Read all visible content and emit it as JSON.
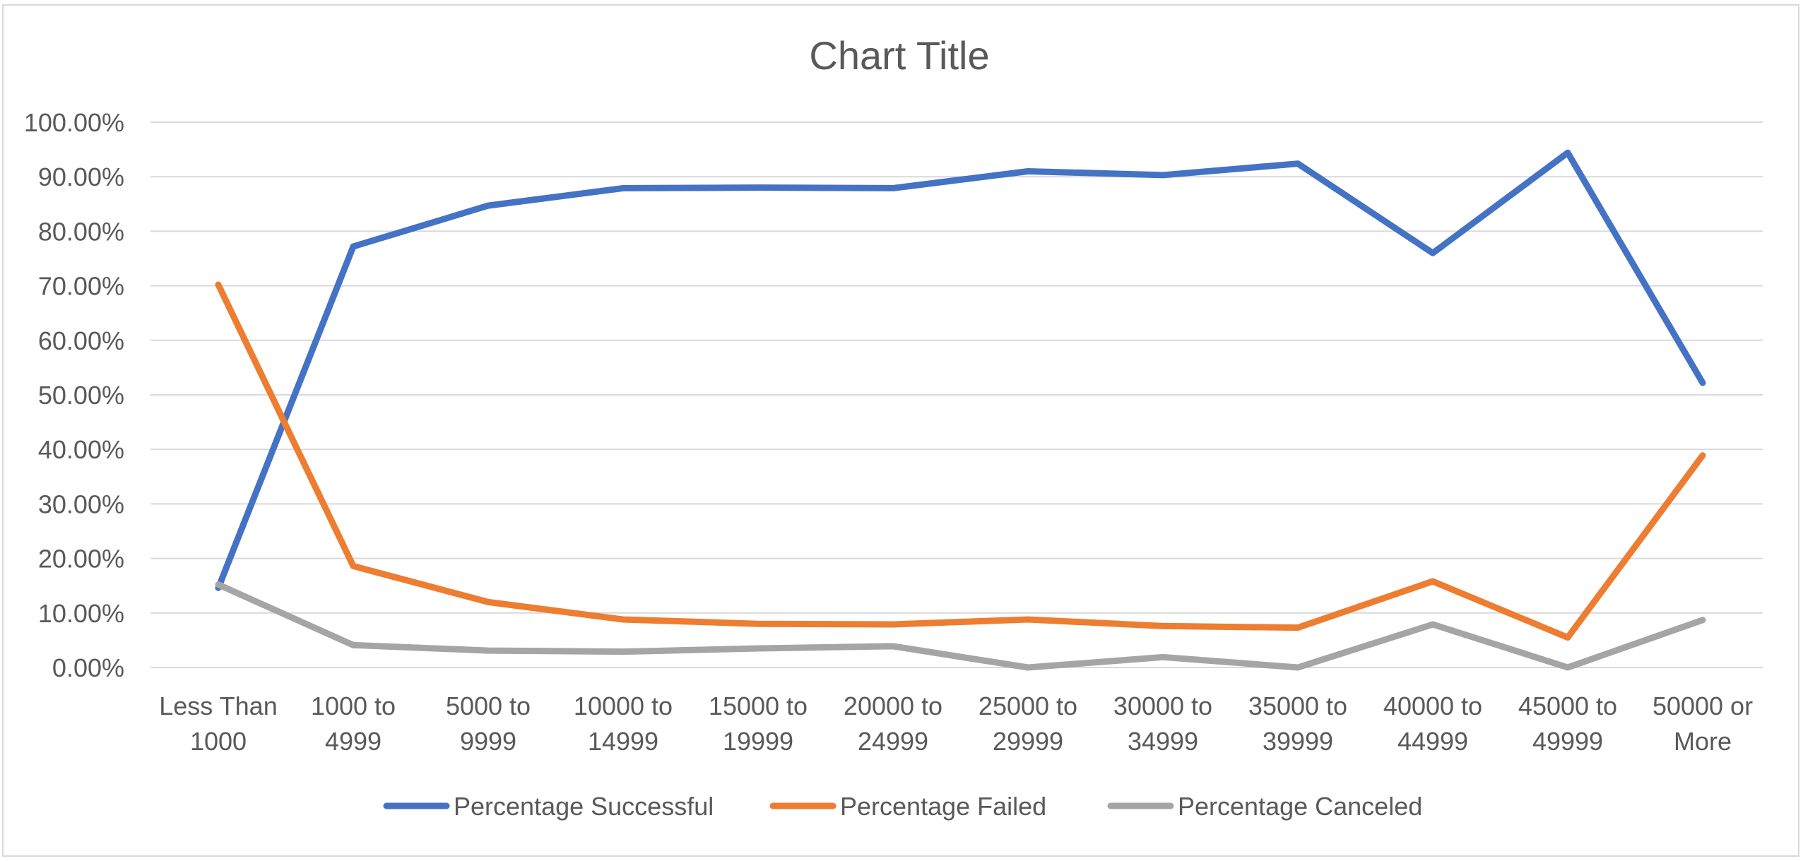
{
  "chart_data": {
    "type": "line",
    "title": "Chart Title",
    "xlabel": "",
    "ylabel": "",
    "ylim": [
      0,
      1
    ],
    "y_ticks": [
      "0.00%",
      "10.00%",
      "20.00%",
      "30.00%",
      "40.00%",
      "50.00%",
      "60.00%",
      "70.00%",
      "80.00%",
      "90.00%",
      "100.00%"
    ],
    "grid": true,
    "legend_position": "bottom",
    "categories": [
      [
        "Less Than",
        "1000"
      ],
      [
        "1000 to",
        "4999"
      ],
      [
        "5000 to",
        "9999"
      ],
      [
        "10000 to",
        "14999"
      ],
      [
        "15000 to",
        "19999"
      ],
      [
        "20000 to",
        "24999"
      ],
      [
        "25000 to",
        "29999"
      ],
      [
        "30000 to",
        "34999"
      ],
      [
        "35000 to",
        "39999"
      ],
      [
        "40000 to",
        "44999"
      ],
      [
        "45000 to",
        "49999"
      ],
      [
        "50000 or",
        "More"
      ]
    ],
    "series": [
      {
        "name": "Percentage Successful",
        "color": "#4472c4",
        "values": [
          0.146,
          0.772,
          0.847,
          0.879,
          0.88,
          0.879,
          0.91,
          0.903,
          0.924,
          0.76,
          0.944,
          0.522
        ]
      },
      {
        "name": "Percentage Failed",
        "color": "#ed7d31",
        "values": [
          0.702,
          0.186,
          0.12,
          0.088,
          0.08,
          0.079,
          0.088,
          0.076,
          0.073,
          0.158,
          0.055,
          0.389
        ]
      },
      {
        "name": "Percentage Canceled",
        "color": "#a5a5a5",
        "values": [
          0.152,
          0.041,
          0.031,
          0.029,
          0.035,
          0.039,
          0.0,
          0.019,
          0.0,
          0.079,
          0.0,
          0.087
        ]
      }
    ]
  }
}
